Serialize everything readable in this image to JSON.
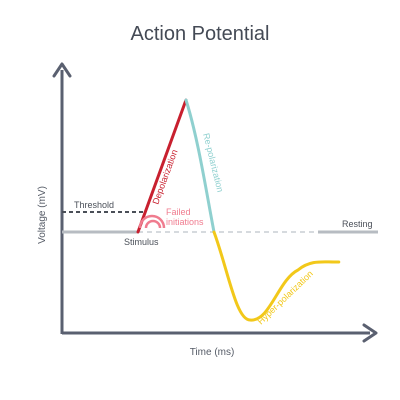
{
  "title": "Action Potential",
  "axes": {
    "x_label": "Time (ms)",
    "y_label": "Voltage (mV)"
  },
  "labels": {
    "threshold": "Threshold",
    "resting": "Resting",
    "stimulus": "Stimulus",
    "failed_line1": "Failed",
    "failed_line2": "initiations",
    "depolarization": "Depolarization",
    "repolarization": "Re-polarization",
    "hyperpolarization": "Hyper-polarization"
  },
  "colors": {
    "axis": "#5a6070",
    "baseline": "#b7bcc2",
    "threshold_line": "#4a4f58",
    "depolarization": "#c8202f",
    "repolarization": "#8fd0cf",
    "hyperpolarization": "#f2c81a",
    "failed": "#f07c8f",
    "resting_dash": "#c9ced4"
  }
}
